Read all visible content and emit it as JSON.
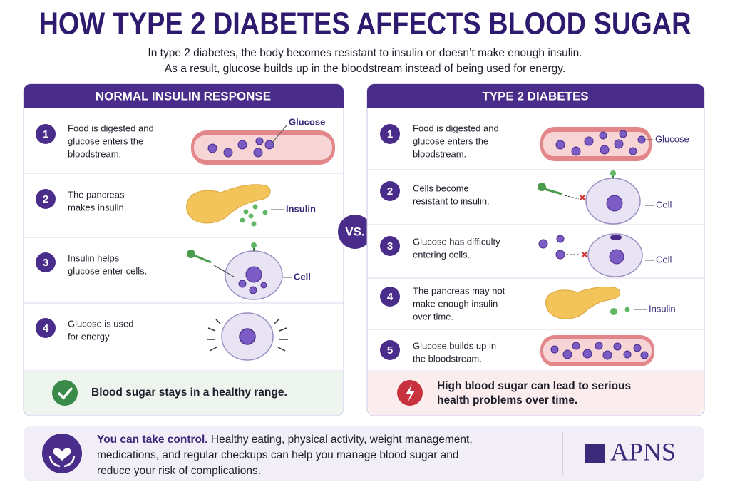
{
  "header": {
    "title": "HOW TYPE 2 DIABETES AFFECTS BLOOD SUGAR",
    "subtitle_lines": [
      "In type 2 diabetes, the body becomes resistant to insulin or doesn’t make enough insulin.",
      "As a result, glucose builds up in the bloodstream instead of being used for energy."
    ]
  },
  "normal": {
    "title": "NORMAL INSULIN RESPONSE",
    "steps": [
      {
        "number": "1",
        "lines": [
          "Food is digested and",
          "glucose enters the",
          "bloodstream."
        ],
        "label": "Glucose"
      },
      {
        "number": "2",
        "lines": [
          "The pancreas",
          "makes insulin."
        ],
        "label": "Insulin"
      },
      {
        "number": "3",
        "lines": [
          "Insulin helps",
          "glucose enter cells."
        ],
        "label": "Cell"
      },
      {
        "number": "4",
        "lines": [
          "Glucose is used",
          "for energy."
        ]
      }
    ],
    "result": "Blood sugar stays in a healthy range."
  },
  "vs": "VS.",
  "diabetes": {
    "title": "TYPE 2 DIABETES",
    "steps": [
      {
        "number": "1",
        "lines": [
          "Food is digested and",
          "glucose enters the",
          "bloodstream."
        ],
        "label": "Glucose"
      },
      {
        "number": "2",
        "lines": [
          "Cells become",
          "resistant to insulin."
        ],
        "label": "Cell"
      },
      {
        "number": "3",
        "lines": [
          "Glucose has difficulty",
          "entering cells."
        ],
        "label": "Cell"
      },
      {
        "number": "4",
        "lines": [
          "The pancreas may not",
          "make enough insulin",
          "over time."
        ],
        "label": "Insulin"
      },
      {
        "number": "5",
        "lines": [
          "Glucose builds up in",
          "the bloodstream."
        ]
      }
    ],
    "result_lines": [
      "High blood sugar can lead to serious",
      "health problems over time."
    ]
  },
  "footer": {
    "lead": "You can take control.",
    "lines": [
      " Healthy eating, physical activity, weight management,",
      "medications, and regular checkups can help you manage blood sugar and",
      "reduce your risk of complications."
    ],
    "brand": "APNS"
  }
}
